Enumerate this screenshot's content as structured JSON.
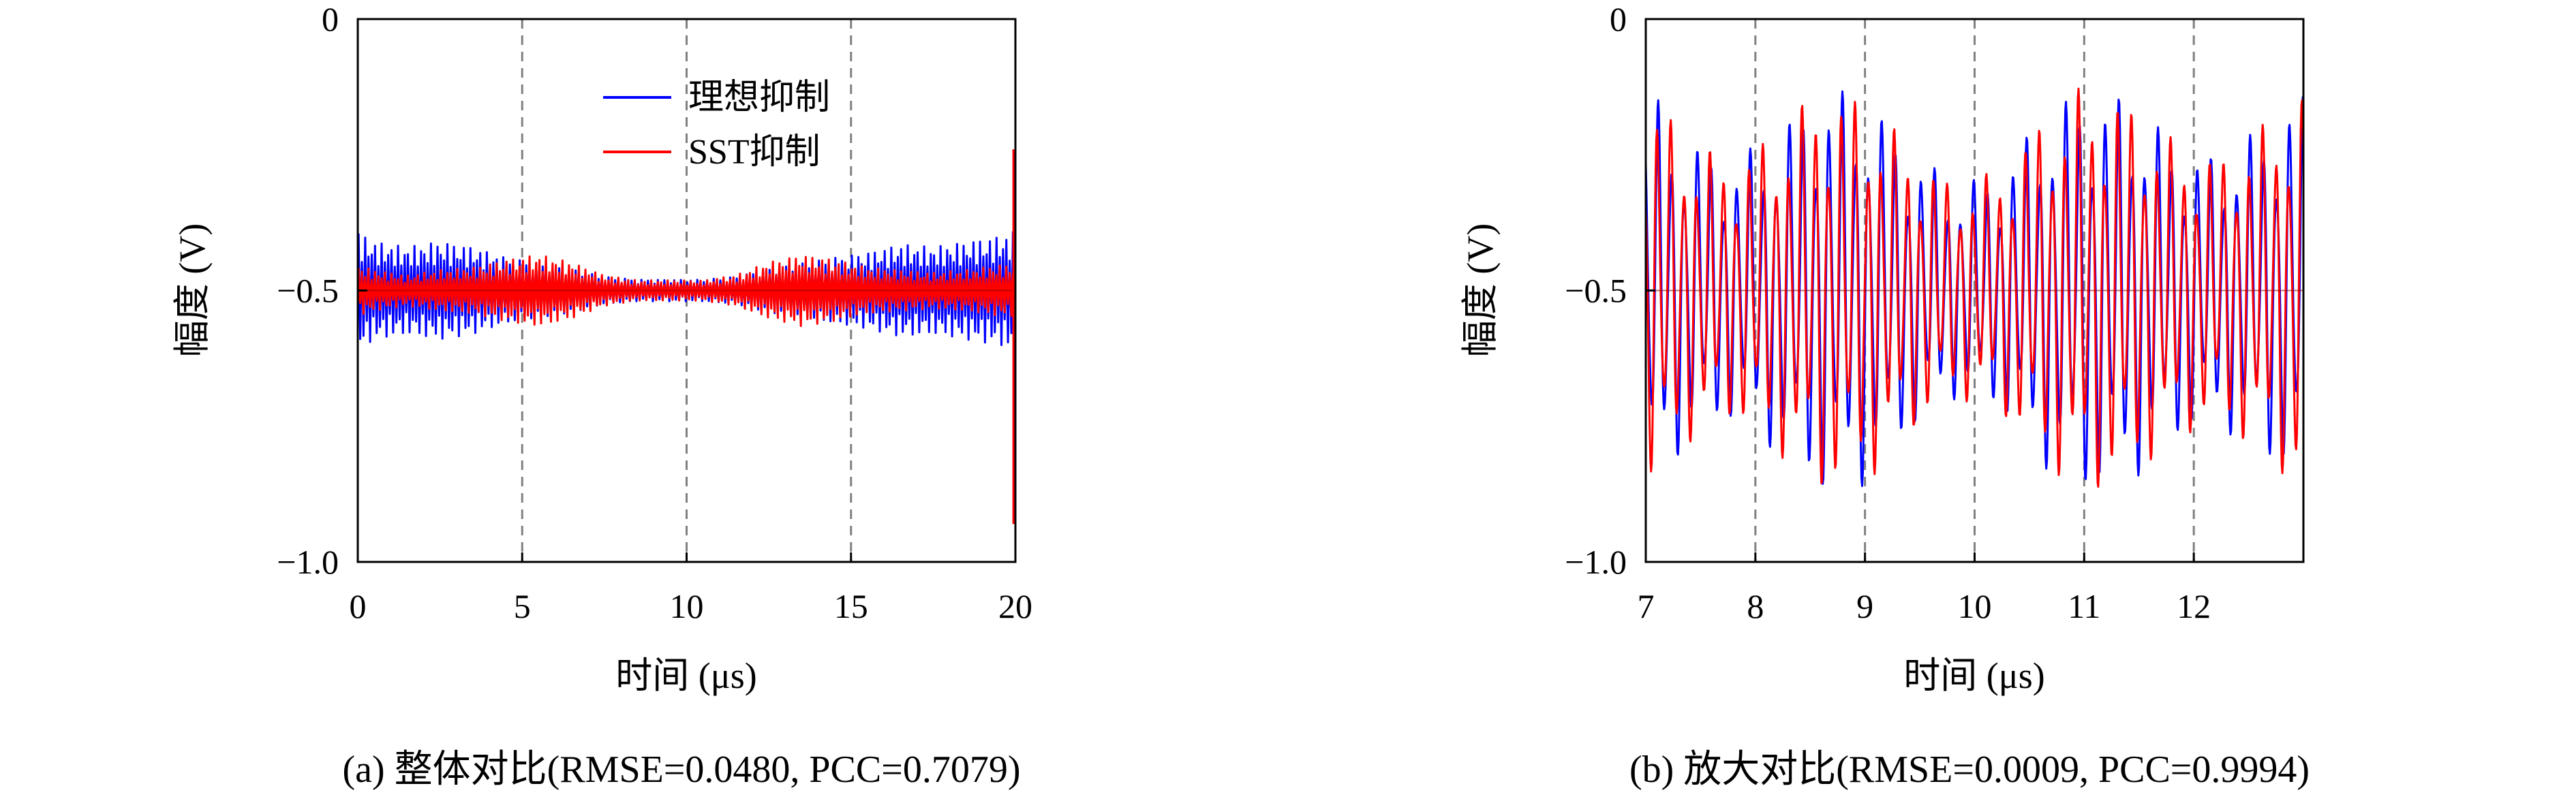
{
  "figure": {
    "captions": [
      "(a) 整体对比(RMSE=0.0480, PCC=0.7079)",
      "(b) 放大对比(RMSE=0.0009, PCC=0.9994)"
    ]
  },
  "colors": {
    "ideal": "#0000ff",
    "sst": "#ff0000",
    "grid": "#808080",
    "axis": "#000000"
  },
  "chart_data": [
    {
      "type": "line",
      "xlabel": "时间 (μs)",
      "ylabel": "幅度 (V)",
      "xlim": [
        0,
        20
      ],
      "ylim": [
        -1.0,
        0
      ],
      "xticks": [
        0,
        5,
        10,
        15,
        20
      ],
      "xtick_labels": [
        "0",
        "5",
        "10",
        "15",
        "20"
      ],
      "yticks": [
        0,
        -0.5,
        -1.0
      ],
      "ytick_labels": [
        "0",
        "−0.5",
        "−1.0"
      ],
      "vertical_grid_dashed": [
        5,
        10,
        15
      ],
      "legend": {
        "position": "top-center",
        "entries": [
          "理想抑制",
          "SST抑制"
        ]
      },
      "series": [
        {
          "name": "理想抑制",
          "color": "#0000ff",
          "kind": "oscillation",
          "center": -0.5,
          "envelope": {
            "x": [
              0,
              0.5,
              1.5,
              2.5,
              3.5,
              4.5,
              5.5,
              6.5,
              7.5,
              8.5,
              9.5,
              10.5,
              11.5,
              12.5,
              13.5,
              14.5,
              15.5,
              16.5,
              17.5,
              18.5,
              19.5,
              20
            ],
            "amp": [
              0.11,
              0.09,
              0.08,
              0.09,
              0.08,
              0.06,
              0.05,
              0.04,
              0.025,
              0.02,
              0.02,
              0.02,
              0.025,
              0.04,
              0.05,
              0.06,
              0.07,
              0.085,
              0.08,
              0.09,
              0.1,
              0.11
            ]
          },
          "spike": null
        },
        {
          "name": "SST抑制",
          "color": "#ff0000",
          "kind": "oscillation",
          "center": -0.5,
          "envelope": {
            "x": [
              0,
              0.5,
              1.5,
              2.5,
              3.5,
              4.5,
              5.5,
              6.5,
              7.5,
              8.5,
              9.5,
              10.5,
              11.5,
              12.5,
              13.5,
              14.5,
              15.5,
              16.5,
              17.5,
              18.5,
              19.5,
              20
            ],
            "amp": [
              0.05,
              0.04,
              0.03,
              0.04,
              0.045,
              0.06,
              0.07,
              0.055,
              0.03,
              0.02,
              0.02,
              0.02,
              0.03,
              0.055,
              0.07,
              0.06,
              0.045,
              0.04,
              0.035,
              0.04,
              0.05,
              0.05
            ]
          },
          "spike": {
            "x": 19.95,
            "y_min": -0.93,
            "y_max": -0.24
          }
        }
      ]
    },
    {
      "type": "line",
      "xlabel": "时间 (μs)",
      "ylabel": "幅度 (V)",
      "xlim": [
        7,
        13
      ],
      "ylim": [
        -1.0,
        0
      ],
      "xticks": [
        7,
        8,
        9,
        10,
        11,
        12
      ],
      "xtick_labels": [
        "7",
        "8",
        "9",
        "10",
        "11",
        "12"
      ],
      "yticks": [
        0,
        -0.5,
        -1.0
      ],
      "ytick_labels": [
        "0",
        "−0.5",
        "−1.0"
      ],
      "vertical_grid_dashed": [
        8,
        9,
        10,
        11,
        12
      ],
      "legend": null,
      "series": [
        {
          "name": "理想抑制",
          "color": "#0000ff",
          "kind": "oscillation",
          "center": -0.5,
          "envelope": {
            "x": [
              7,
              7.4,
              7.8,
              8.2,
              8.6,
              9.0,
              9.4,
              9.8,
              10.2,
              10.6,
              11.0,
              11.4,
              11.8,
              12.2,
              12.6,
              13
            ],
            "amp": [
              0.38,
              0.28,
              0.24,
              0.3,
              0.38,
              0.36,
              0.27,
              0.2,
              0.22,
              0.32,
              0.38,
              0.36,
              0.28,
              0.25,
              0.3,
              0.38
            ]
          },
          "spike": null
        },
        {
          "name": "SST抑制",
          "color": "#ff0000",
          "kind": "oscillation",
          "center": -0.5,
          "envelope": {
            "x": [
              7,
              7.4,
              7.8,
              8.2,
              8.6,
              9.0,
              9.4,
              9.8,
              10.2,
              10.6,
              11.0,
              11.4,
              11.8,
              12.2,
              12.6,
              13
            ],
            "amp": [
              0.38,
              0.28,
              0.24,
              0.3,
              0.38,
              0.36,
              0.27,
              0.2,
              0.22,
              0.32,
              0.38,
              0.36,
              0.28,
              0.25,
              0.3,
              0.38
            ]
          },
          "spike": null
        }
      ]
    }
  ]
}
